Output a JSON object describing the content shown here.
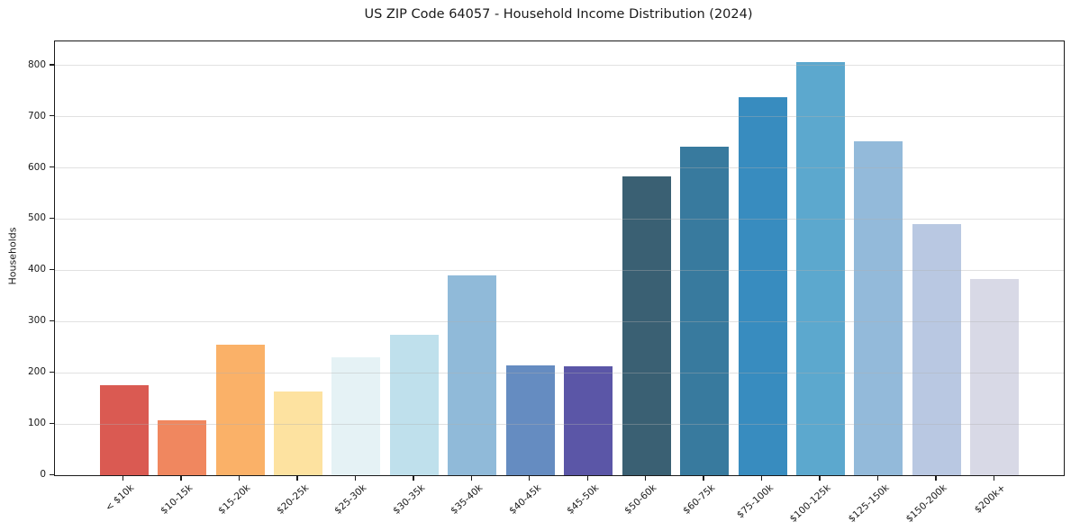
{
  "chart_data": {
    "type": "bar",
    "title": "US ZIP Code 64057 - Household Income Distribution (2024)",
    "xlabel": "",
    "ylabel": "Households",
    "categories": [
      "< $10k",
      "$10-15k",
      "$15-20k",
      "$20-25k",
      "$25-30k",
      "$30-35k",
      "$35-40k",
      "$40-45k",
      "$45-50k",
      "$50-60k",
      "$60-75k",
      "$75-100k",
      "$100-125k",
      "$125-150k",
      "$150-200k",
      "$200k+"
    ],
    "values": [
      175,
      108,
      254,
      163,
      231,
      275,
      390,
      214,
      212,
      584,
      641,
      738,
      806,
      652,
      491,
      383
    ],
    "bar_colors": [
      "#da5a52",
      "#f0875f",
      "#fab168",
      "#fde2a0",
      "#e5f2f5",
      "#bfe0ec",
      "#90bad9",
      "#658cc1",
      "#5b56a7",
      "#3a6073",
      "#387a9e",
      "#388cbf",
      "#5ca8ce",
      "#93bada",
      "#b9c8e2",
      "#d8d9e6"
    ],
    "yticks": [
      0,
      100,
      200,
      300,
      400,
      500,
      600,
      700,
      800
    ],
    "ylim": [
      0,
      847
    ],
    "grid": "horizontal-only",
    "legend": "none"
  },
  "colors": {
    "background": "#ffffff",
    "axis": "#1a1a1a",
    "grid": "#b0b0b0",
    "text": "#1a1a1a"
  }
}
